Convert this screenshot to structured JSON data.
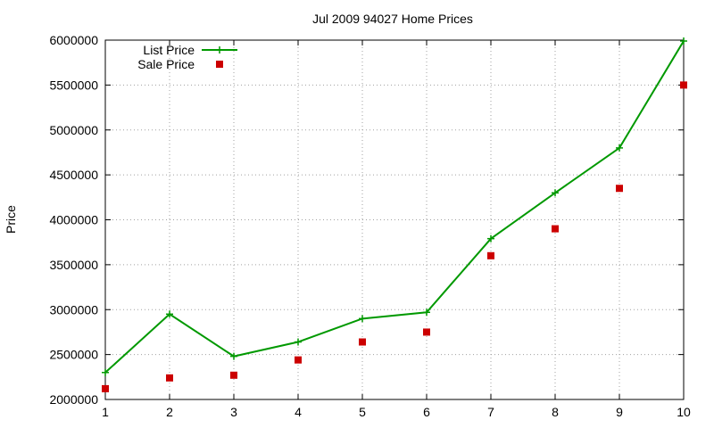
{
  "chart_data": {
    "type": "line",
    "title": "Jul 2009 94027 Home Prices",
    "xlabel": "",
    "ylabel": "Price",
    "x": [
      1,
      2,
      3,
      4,
      5,
      6,
      7,
      8,
      9,
      10
    ],
    "xlim": [
      1,
      10
    ],
    "ylim": [
      2000000,
      6000000
    ],
    "xticks": [
      "1",
      "2",
      "3",
      "4",
      "5",
      "6",
      "7",
      "8",
      "9",
      "10"
    ],
    "yticks": [
      "2000000",
      "2500000",
      "3000000",
      "3500000",
      "4000000",
      "4500000",
      "5000000",
      "5500000",
      "6000000"
    ],
    "grid": true,
    "legend_position": "top-left",
    "series": [
      {
        "name": "List Price",
        "style": "line-points",
        "marker": "plus",
        "color": "#009900",
        "values": [
          2300000,
          2950000,
          2480000,
          2640000,
          2900000,
          2970000,
          3790000,
          4300000,
          4800000,
          5990000
        ]
      },
      {
        "name": "Sale Price",
        "style": "points",
        "marker": "square",
        "color": "#cc0000",
        "values": [
          2120000,
          2240000,
          2270000,
          2440000,
          2640000,
          2750000,
          3600000,
          3900000,
          4350000,
          5500000
        ]
      }
    ]
  }
}
